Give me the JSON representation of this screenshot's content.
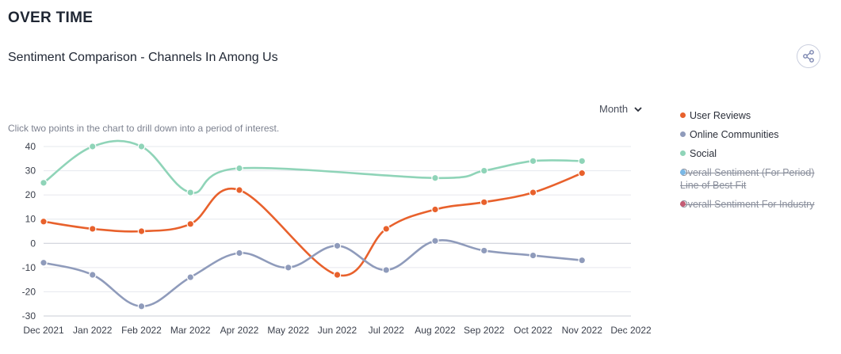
{
  "header": {
    "section_title": "OVER TIME",
    "chart_title": "Sentiment Comparison - Channels In Among Us",
    "share_icon": "share-icon"
  },
  "controls": {
    "period_label": "Month",
    "period_icon": "chevron-down-icon",
    "hint": "Click two points in the chart to drill down into a period of interest."
  },
  "legend": [
    {
      "label": "User Reviews",
      "color": "#e8612c",
      "active": true
    },
    {
      "label": "Online Communities",
      "color": "#8f9bbb",
      "active": true
    },
    {
      "label": "Social",
      "color": "#8fd4b8",
      "active": true
    },
    {
      "label": "Overall Sentiment (For Period) Line of Best Fit",
      "color": "#7ab8e6",
      "active": false
    },
    {
      "label": "Overall Sentiment For Industry",
      "color": "#c45c74",
      "active": false
    }
  ],
  "chart_data": {
    "type": "line",
    "categories": [
      "Dec 2021",
      "Jan 2022",
      "Feb 2022",
      "Mar 2022",
      "Apr 2022",
      "May 2022",
      "Jun 2022",
      "Jul 2022",
      "Aug 2022",
      "Sep 2022",
      "Oct 2022",
      "Nov 2022",
      "Dec 2022"
    ],
    "yticks": [
      40,
      30,
      20,
      10,
      0,
      -10,
      -20,
      -30
    ],
    "ylim": [
      -30,
      40
    ],
    "grid": true,
    "legend_position": "right",
    "series": [
      {
        "name": "User Reviews",
        "color": "#e8612c",
        "values": [
          9,
          6,
          5,
          8,
          22,
          null,
          -13,
          6,
          14,
          17,
          21,
          29,
          null
        ]
      },
      {
        "name": "Online Communities",
        "color": "#8f9bbb",
        "values": [
          -8,
          -13,
          -26,
          -14,
          -4,
          -10,
          -1,
          -11,
          1,
          -3,
          -5,
          -7,
          null
        ]
      },
      {
        "name": "Social",
        "color": "#8fd4b8",
        "values": [
          25,
          40,
          40,
          21,
          31,
          null,
          null,
          null,
          27,
          30,
          34,
          34,
          null
        ]
      }
    ]
  }
}
